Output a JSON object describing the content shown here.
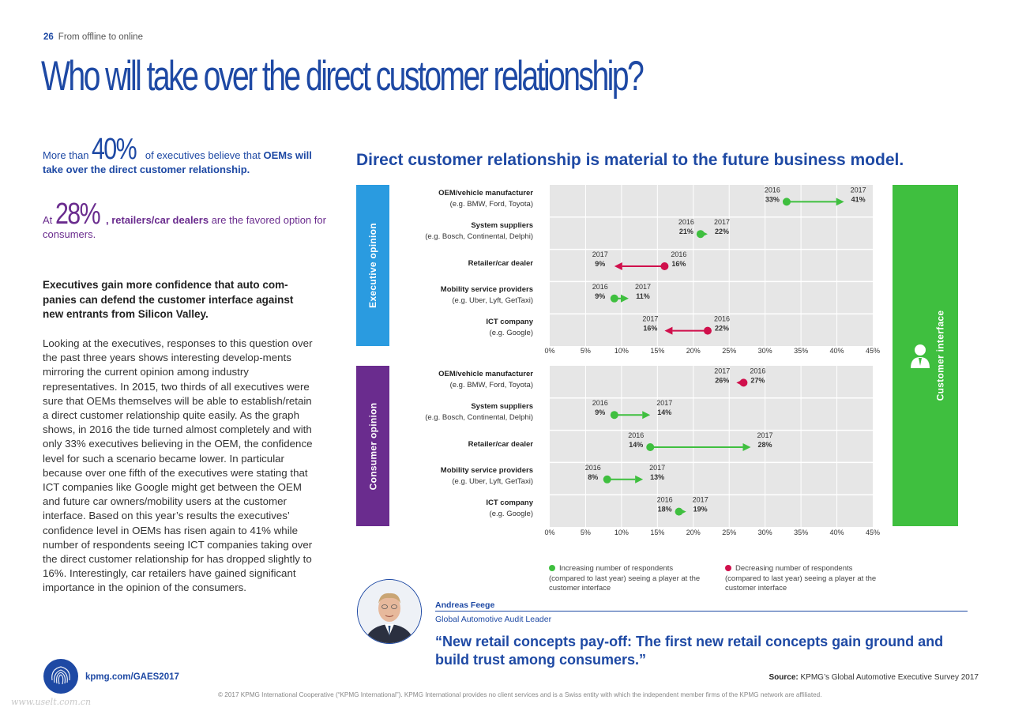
{
  "header": {
    "page_number": "26",
    "section": "From offline to online"
  },
  "title": "Who will take over the direct customer relationship?",
  "stat1": {
    "pre": "More than",
    "number": "40%",
    "mid": "of executives believe that",
    "bold": "OEMs will take over the direct customer relationship."
  },
  "stat2": {
    "pre": "At",
    "number": "28%",
    "bold": ", retailers/car dealers",
    "post": " are the favored option for consumers."
  },
  "lead": "Executives gain more confidence that auto com-panies can defend the customer interface against new entrants from Silicon Valley.",
  "body": "Looking at the executives, responses to this question over the past three years shows interesting develop-ments mirroring the current opinion among industry representatives. In 2015, two thirds of all executives were sure that OEMs themselves will be able to establish/retain a direct customer relationship quite easily. As the graph shows, in 2016 the tide turned almost completely and with only 33% executives believing in the OEM, the confidence level for such a scenario became lower. In particular because over one fifth of the executives were stating that ICT companies like Google might get between the OEM and future car owners/mobility users at the customer interface. Based on this year’s results the executives’ confidence level in OEMs has risen again to 41% while number of respondents seeing ICT companies taking over the direct customer relationship for has dropped slightly to 16%. Interestingly, car retailers have gained significant importance in the opinion of the consumers.",
  "chart_data": {
    "type": "dumbbell",
    "title": "Direct customer relationship is material to the future business model.",
    "side_label": "Customer interface",
    "xlim": [
      0,
      45
    ],
    "x_ticks": [
      "0%",
      "5%",
      "10%",
      "15%",
      "20%",
      "25%",
      "30%",
      "35%",
      "40%",
      "45%"
    ],
    "legend": [
      {
        "label": "Increasing number of respondents (compared to last year) seeing a player at the customer interface",
        "color": "#3fbf3f"
      },
      {
        "label": "Decreasing number of respondents (compared to last year) seeing a player at the customer interface",
        "color": "#d0104c"
      }
    ],
    "colors": {
      "increase": "#3fbf3f",
      "decrease": "#d0104c"
    },
    "panels": [
      {
        "name": "Executive opinion",
        "rows": [
          {
            "label": "OEM/vehicle manufacturer",
            "sub": "(e.g. BMW, Ford, Toyota)",
            "y2016": 33,
            "y2017": 41
          },
          {
            "label": "System suppliers",
            "sub": "(e.g. Bosch, Continental, Delphi)",
            "y2016": 21,
            "y2017": 22
          },
          {
            "label": "Retailer/car dealer",
            "sub": "",
            "y2016": 16,
            "y2017": 9
          },
          {
            "label": "Mobility service providers",
            "sub": "(e.g. Uber, Lyft, GetTaxi)",
            "y2016": 9,
            "y2017": 11
          },
          {
            "label": "ICT company",
            "sub": "(e.g. Google)",
            "y2016": 22,
            "y2017": 16
          }
        ]
      },
      {
        "name": "Consumer opinion",
        "rows": [
          {
            "label": "OEM/vehicle manufacturer",
            "sub": "(e.g. BMW, Ford, Toyota)",
            "y2016": 27,
            "y2017": 26
          },
          {
            "label": "System suppliers",
            "sub": "(e.g. Bosch, Continental, Delphi)",
            "y2016": 9,
            "y2017": 14
          },
          {
            "label": "Retailer/car dealer",
            "sub": "",
            "y2016": 14,
            "y2017": 28
          },
          {
            "label": "Mobility service providers",
            "sub": "(e.g. Uber, Lyft, GetTaxi)",
            "y2016": 8,
            "y2017": 13
          },
          {
            "label": "ICT company",
            "sub": "(e.g. Google)",
            "y2016": 18,
            "y2017": 19
          }
        ]
      }
    ]
  },
  "person": {
    "name": "Andreas Feege",
    "role": "Global Automotive Audit Leader"
  },
  "quote": "“New retail concepts pay-off: The first new retail concepts gain ground and build trust among consumers.”",
  "footer": {
    "url": "kpmg.com/GAES2017",
    "source_label": "Source:",
    "source_text": " KPMG’s Global Automotive Executive Survey 2017",
    "copyright": "© 2017 KPMG International Cooperative (“KPMG International”). KPMG International provides no client services and is a Swiss entity with which the independent member firms of the KPMG network are affiliated.",
    "watermark": "www.uselt.com.cn"
  }
}
